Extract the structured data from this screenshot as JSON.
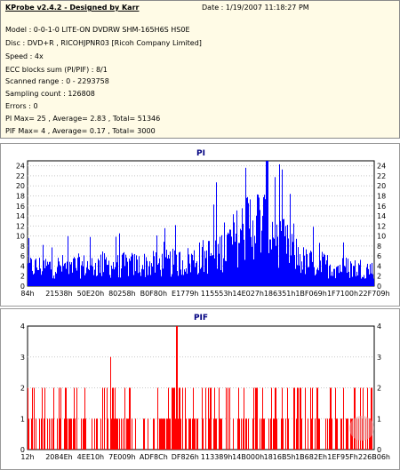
{
  "info": {
    "title": "KProbe v2.4.2 - Designed by Karr",
    "date": "Date : 1/19/2007 11:18:27 PM",
    "lines": [
      "Model : 0-0-1-0 LITE-ON DVDRW SHM-165H6S HS0E",
      "Disc : DVD+R , RICOHJPNR03 [Ricoh Company Limited]",
      "Speed : 4x",
      "ECC blocks sum (PI/PIF) : 8/1",
      "Scanned range : 0 - 2293758",
      "Sampling count : 126808",
      "Errors : 0",
      "PI Max= 25 , Average= 2.83 , Total= 51346",
      "PIF Max= 4 , Average= 0.17 , Total= 3000"
    ]
  },
  "colors": {
    "pi": "#0000ff",
    "pif": "#ff0000",
    "title": "#000080"
  },
  "chart_data": [
    {
      "type": "bar",
      "title": "PI",
      "ylim": [
        0,
        25
      ],
      "yticks": [
        0,
        2,
        4,
        6,
        8,
        10,
        12,
        14,
        16,
        18,
        20,
        22,
        24
      ],
      "xticks": [
        "84h",
        "21538h",
        "50E20h",
        "80258h",
        "B0F80h",
        "E1779h",
        "115553h",
        "14E027h",
        "186351h",
        "1BF069h",
        "1F7100h",
        "22F709h"
      ],
      "profile_x": [
        0,
        0.35,
        0.45,
        0.55,
        0.6,
        0.65,
        0.7,
        0.75,
        0.8,
        0.9,
        1.0
      ],
      "profile_y": [
        4,
        4.5,
        5,
        7,
        10,
        14,
        12,
        8,
        5,
        4,
        3.5
      ],
      "max": 25
    },
    {
      "type": "bar",
      "title": "PIF",
      "ylim": [
        0,
        4
      ],
      "yticks": [
        0,
        1,
        2,
        3,
        4
      ],
      "xticks": [
        "12h",
        "2084Eh",
        "4EE10h",
        "7E009h",
        "ADF8Ch",
        "DF826h",
        "113389h",
        "14B000h",
        "1816B5h",
        "1B682Eh",
        "1EF95Fh",
        "226B06h"
      ],
      "max": 4
    }
  ]
}
